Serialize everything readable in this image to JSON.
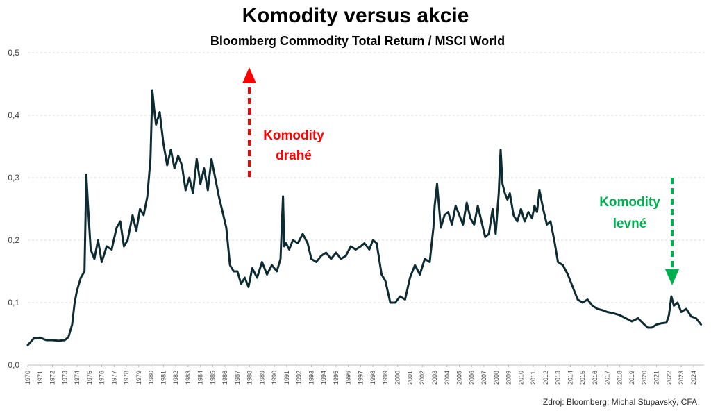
{
  "chart_data": {
    "type": "line",
    "title": "Komodity versus akcie",
    "subtitle": "Bloomberg Commodity Total Return / MSCI World",
    "source": "Zdroj: Bloomberg; Michal Stupavský, CFA",
    "ylim": [
      0,
      0.5
    ],
    "y_ticks": [
      "0,0",
      "0,1",
      "0,2",
      "0,3",
      "0,4",
      "0,5"
    ],
    "x_ticks": [
      "1970",
      "1971",
      "1972",
      "1973",
      "1974",
      "1975",
      "1976",
      "1977",
      "1978",
      "1979",
      "1980",
      "1981",
      "1982",
      "1983",
      "1984",
      "1985",
      "1986",
      "1987",
      "1988",
      "1989",
      "1990",
      "1991",
      "1992",
      "1993",
      "1994",
      "1995",
      "1996",
      "1997",
      "1998",
      "1999",
      "2000",
      "2001",
      "2002",
      "2003",
      "2004",
      "2005",
      "2006",
      "2007",
      "2008",
      "2009",
      "2010",
      "2011",
      "2012",
      "2013",
      "2014",
      "2015",
      "2016",
      "2017",
      "2018",
      "2019",
      "2020",
      "2021",
      "2022",
      "2023",
      "2024"
    ],
    "grid": true,
    "line_color": "#0d2b33",
    "series": [
      {
        "x": [
          1970.0,
          1970.5,
          1971.0,
          1971.5,
          1972.0,
          1972.5,
          1973.0,
          1973.3,
          1973.6,
          1973.8,
          1974.0,
          1974.3,
          1974.6,
          1974.75,
          1974.9,
          1975.1,
          1975.4,
          1975.7,
          1976.0,
          1976.4,
          1976.8,
          1977.2,
          1977.5,
          1977.8,
          1978.1,
          1978.5,
          1978.8,
          1979.1,
          1979.4,
          1979.7,
          1979.95,
          1980.1,
          1980.25,
          1980.4,
          1980.7,
          1981.0,
          1981.3,
          1981.6,
          1981.9,
          1982.2,
          1982.5,
          1982.8,
          1983.1,
          1983.4,
          1983.7,
          1984.0,
          1984.3,
          1984.6,
          1984.9,
          1985.2,
          1985.5,
          1985.8,
          1986.1,
          1986.4,
          1986.7,
          1987.0,
          1987.3,
          1987.6,
          1987.9,
          1988.2,
          1988.6,
          1989.0,
          1989.4,
          1989.8,
          1990.2,
          1990.5,
          1990.7,
          1990.8,
          1990.95,
          1991.2,
          1991.5,
          1991.9,
          1992.3,
          1992.7,
          1993.0,
          1993.4,
          1993.8,
          1994.2,
          1994.6,
          1995.0,
          1995.4,
          1995.8,
          1996.2,
          1996.6,
          1997.0,
          1997.3,
          1997.7,
          1998.0,
          1998.3,
          1998.7,
          1999.0,
          1999.4,
          1999.8,
          2000.2,
          2000.6,
          2001.0,
          2001.4,
          2001.8,
          2002.2,
          2002.6,
          2002.9,
          2003.0,
          2003.2,
          2003.5,
          2003.8,
          2004.1,
          2004.4,
          2004.7,
          2005.0,
          2005.3,
          2005.6,
          2005.9,
          2006.2,
          2006.5,
          2006.8,
          2007.1,
          2007.4,
          2007.7,
          2007.95,
          2008.2,
          2008.35,
          2008.5,
          2008.7,
          2008.9,
          2009.1,
          2009.4,
          2009.7,
          2010.0,
          2010.3,
          2010.6,
          2010.9,
          2011.1,
          2011.3,
          2011.5,
          2011.8,
          2012.1,
          2012.4,
          2012.7,
          2013.0,
          2013.4,
          2013.8,
          2014.2,
          2014.6,
          2015.0,
          2015.4,
          2015.8,
          2016.2,
          2016.6,
          2017.0,
          2017.5,
          2018.0,
          2018.5,
          2019.0,
          2019.5,
          2020.0,
          2020.3,
          2020.6,
          2021.0,
          2021.4,
          2021.8,
          2022.0,
          2022.2,
          2022.4,
          2022.7,
          2023.0,
          2023.4,
          2023.8,
          2024.2,
          2024.6
        ],
        "y": [
          0.032,
          0.043,
          0.044,
          0.04,
          0.04,
          0.039,
          0.04,
          0.045,
          0.065,
          0.1,
          0.12,
          0.14,
          0.15,
          0.305,
          0.25,
          0.185,
          0.17,
          0.2,
          0.165,
          0.19,
          0.185,
          0.22,
          0.23,
          0.19,
          0.2,
          0.24,
          0.215,
          0.25,
          0.24,
          0.27,
          0.33,
          0.44,
          0.41,
          0.385,
          0.405,
          0.355,
          0.32,
          0.345,
          0.315,
          0.335,
          0.32,
          0.28,
          0.3,
          0.275,
          0.33,
          0.29,
          0.315,
          0.28,
          0.33,
          0.3,
          0.27,
          0.245,
          0.22,
          0.16,
          0.15,
          0.15,
          0.13,
          0.14,
          0.125,
          0.155,
          0.14,
          0.165,
          0.145,
          0.16,
          0.15,
          0.17,
          0.27,
          0.19,
          0.195,
          0.185,
          0.2,
          0.195,
          0.21,
          0.195,
          0.17,
          0.165,
          0.175,
          0.18,
          0.17,
          0.18,
          0.17,
          0.175,
          0.19,
          0.185,
          0.19,
          0.195,
          0.185,
          0.2,
          0.195,
          0.145,
          0.135,
          0.1,
          0.1,
          0.11,
          0.105,
          0.14,
          0.16,
          0.145,
          0.17,
          0.165,
          0.22,
          0.255,
          0.29,
          0.22,
          0.24,
          0.245,
          0.225,
          0.255,
          0.24,
          0.225,
          0.26,
          0.235,
          0.225,
          0.255,
          0.23,
          0.205,
          0.21,
          0.25,
          0.21,
          0.275,
          0.345,
          0.29,
          0.275,
          0.265,
          0.275,
          0.24,
          0.23,
          0.25,
          0.23,
          0.245,
          0.235,
          0.255,
          0.245,
          0.28,
          0.25,
          0.225,
          0.23,
          0.2,
          0.165,
          0.16,
          0.145,
          0.125,
          0.105,
          0.1,
          0.105,
          0.095,
          0.09,
          0.088,
          0.085,
          0.083,
          0.08,
          0.075,
          0.07,
          0.075,
          0.065,
          0.06,
          0.06,
          0.065,
          0.067,
          0.068,
          0.08,
          0.11,
          0.095,
          0.1,
          0.085,
          0.09,
          0.078,
          0.075,
          0.065
        ]
      }
    ],
    "annotations": [
      {
        "text_lines": [
          "Komodity",
          "drahé"
        ],
        "color": "#ff0000",
        "arrow": "up"
      },
      {
        "text_lines": [
          "Komodity",
          "levné"
        ],
        "color": "#00b050",
        "arrow": "down"
      }
    ]
  }
}
